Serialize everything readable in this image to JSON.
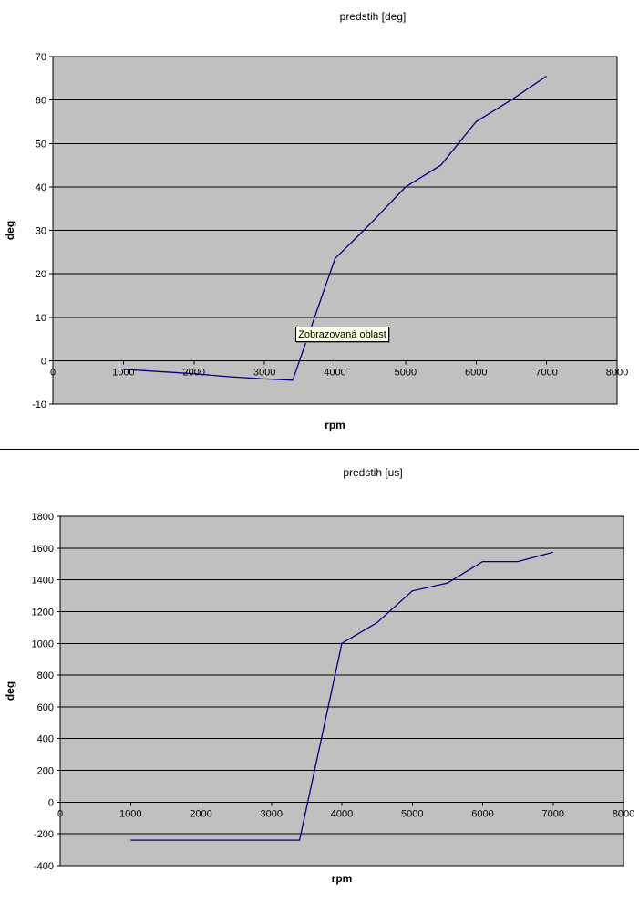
{
  "tooltip": {
    "text": "Zobrazovaná oblast"
  },
  "chart_data": [
    {
      "type": "line",
      "title": "predstih [deg]",
      "xlabel": "rpm",
      "ylabel": "deg",
      "xlim": [
        0,
        8000
      ],
      "ylim": [
        -10,
        70
      ],
      "x_ticks": [
        0,
        1000,
        2000,
        3000,
        4000,
        5000,
        6000,
        7000,
        8000
      ],
      "y_ticks": [
        70,
        60,
        50,
        40,
        30,
        20,
        10,
        0,
        -10
      ],
      "grid": true,
      "legend_position": "none",
      "plot_bg": "#c0c0c0",
      "line_color": "#000080",
      "axis_color": "#000000",
      "annotations": [
        {
          "type": "tooltip",
          "text": "Zobrazovaná oblast"
        }
      ],
      "series": [
        {
          "name": "predstih [deg]",
          "x": [
            1000,
            1500,
            2000,
            2500,
            3000,
            3400,
            4000,
            4500,
            5000,
            5500,
            6000,
            6500,
            7000
          ],
          "y": [
            -2,
            -2.5,
            -3,
            -3.7,
            -4.2,
            -4.5,
            23.5,
            31.5,
            40,
            45,
            55,
            60,
            65.5
          ]
        }
      ]
    },
    {
      "type": "line",
      "title": "predstih [us]",
      "xlabel": "rpm",
      "ylabel": "deg",
      "xlim": [
        0,
        8000
      ],
      "ylim": [
        -400,
        1800
      ],
      "x_ticks": [
        0,
        1000,
        2000,
        3000,
        4000,
        5000,
        6000,
        7000,
        8000
      ],
      "y_ticks": [
        1800,
        1600,
        1400,
        1200,
        1000,
        800,
        600,
        400,
        200,
        0,
        -200,
        -400
      ],
      "grid": true,
      "legend_position": "none",
      "plot_bg": "#c0c0c0",
      "line_color": "#000080",
      "axis_color": "#000000",
      "annotations": [],
      "series": [
        {
          "name": "predstih [us]",
          "x": [
            1000,
            1500,
            2000,
            2500,
            3000,
            3400,
            4000,
            4500,
            5000,
            5500,
            6000,
            6500,
            7000
          ],
          "y": [
            -240,
            -240,
            -240,
            -240,
            -240,
            -240,
            1000,
            1130,
            1330,
            1380,
            1515,
            1515,
            1575
          ]
        }
      ]
    }
  ]
}
